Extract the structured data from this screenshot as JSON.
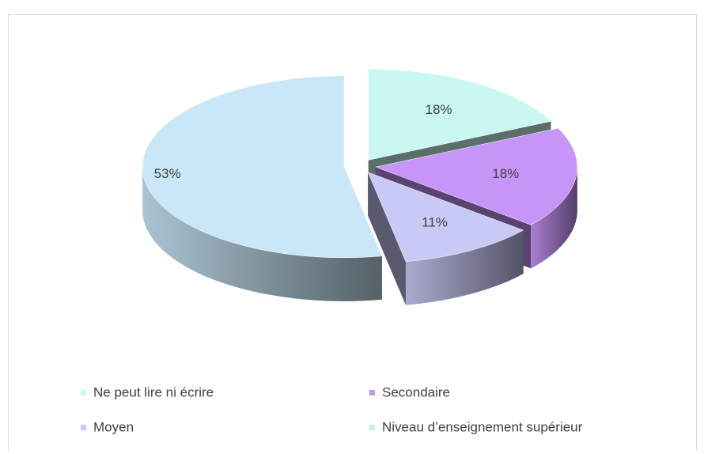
{
  "chart_data": {
    "type": "pie3d",
    "categories": [
      "Ne peut lire ni écrire",
      "Secondaire",
      "Moyen",
      "Niveau d’enseignement supérieur"
    ],
    "values": [
      18,
      18,
      11,
      53
    ],
    "value_labels": [
      "18%",
      "18%",
      "11%",
      "53%"
    ],
    "colors": [
      "#c9f7f1",
      "#c795f8",
      "#c9c9f6",
      "#c9e7f7"
    ],
    "legend": "bottom"
  }
}
